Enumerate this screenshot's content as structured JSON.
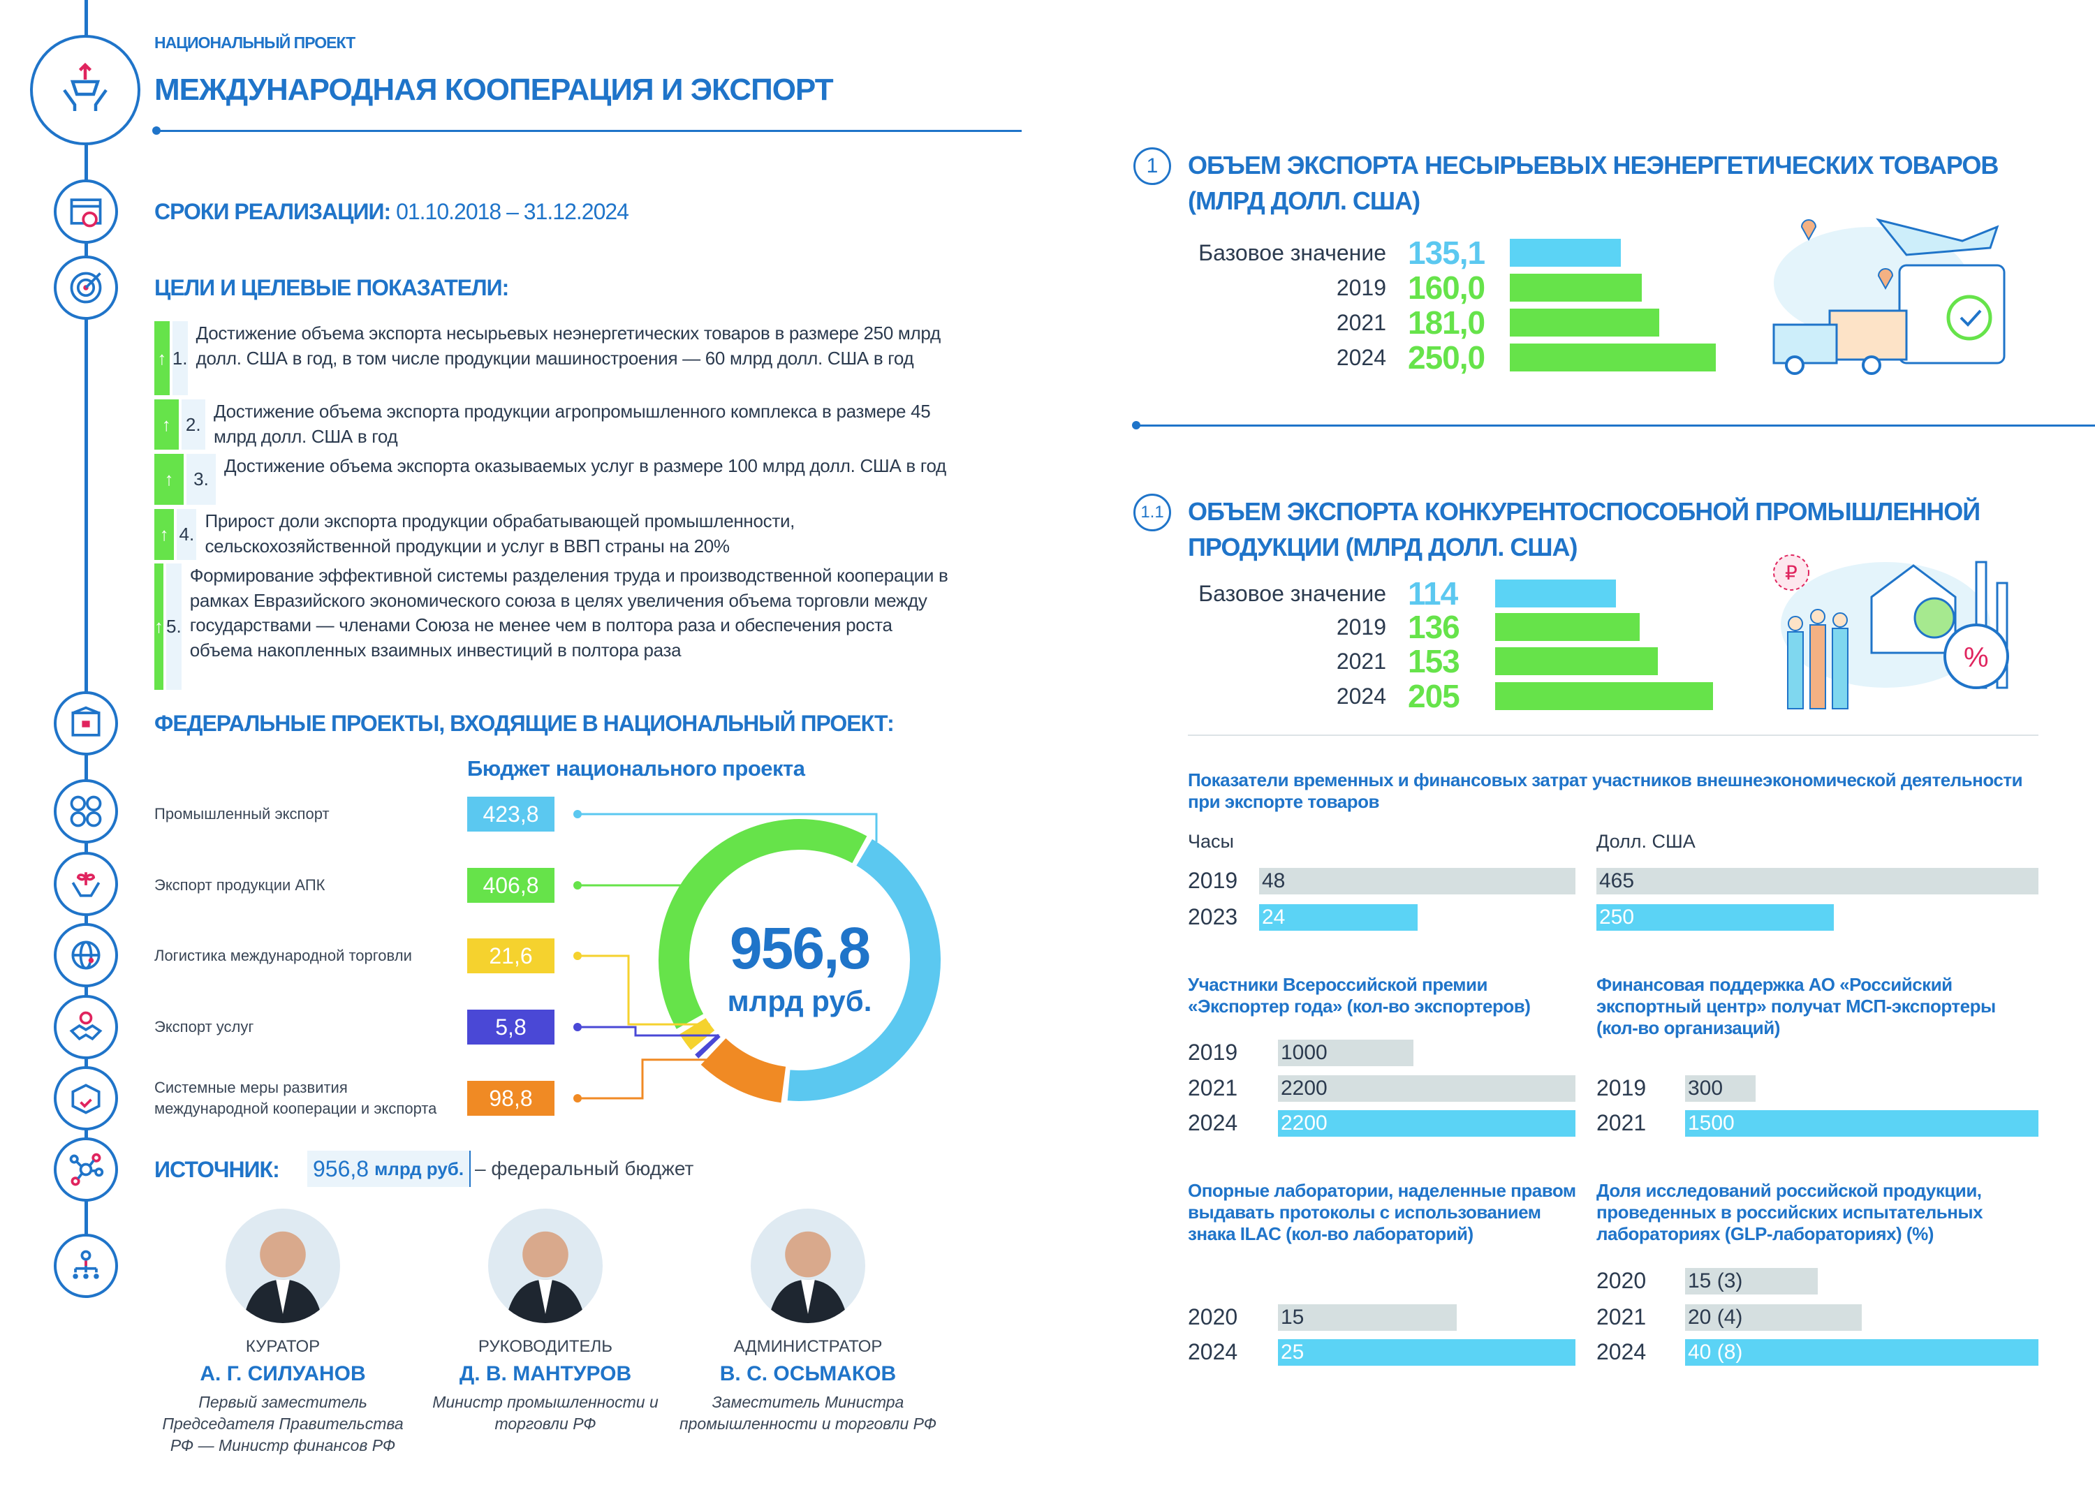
{
  "header": {
    "kicker": "НАЦИОНАЛЬНЫЙ ПРОЕКТ",
    "title": "МЕЖДУНАРОДНАЯ КООПЕРАЦИЯ И ЭКСПОРТ"
  },
  "timeline": {
    "label": "СРОКИ РЕАЛИЗАЦИИ:",
    "value": "01.10.2018 – 31.12.2024"
  },
  "goals": {
    "title": "ЦЕЛИ И ЦЕЛЕВЫЕ ПОКАЗАТЕЛИ:",
    "items": [
      {
        "num": "1.",
        "text": "Достижение объема экспорта несырьевых неэнергетических товаров в размере 250 млрд долл. США в год, в том числе продукции машиностроения — 60 млрд долл. США в год"
      },
      {
        "num": "2.",
        "text": "Достижение объема экспорта продукции агропромышленного комплекса в размере 45 млрд долл. США в год"
      },
      {
        "num": "3.",
        "text": "Достижение объема экспорта оказываемых услуг в размере 100 млрд долл. США в год"
      },
      {
        "num": "4.",
        "text": "Прирост доли экспорта продукции обрабатывающей промышленности, сельскохозяйственной продукции и услуг в ВВП страны на 20%"
      },
      {
        "num": "5.",
        "text": "Формирование эффективной системы разделения труда и производственной кооперации в рамках Евразийского экономического союза в целях увеличения объема торговли между государствами — членами Союза не менее чем в полтора раза и обеспечения роста объема накопленных взаимных инвестиций в полтора раза"
      }
    ]
  },
  "federal": {
    "title": "ФЕДЕРАЛЬНЫЕ ПРОЕКТЫ, ВХОДЯЩИЕ В НАЦИОНАЛЬНЫЙ ПРОЕКТ:",
    "budget_title": "Бюджет национального проекта",
    "total": "956,8",
    "total_unit": "млрд руб.",
    "projects": [
      {
        "label": "Промышленный экспорт",
        "value": 423.8,
        "display": "423,8",
        "color": "#5bc8f0"
      },
      {
        "label": "Экспорт продукции АПК",
        "value": 406.8,
        "display": "406,8",
        "color": "#66e34a"
      },
      {
        "label": "Логистика международной торговли",
        "value": 21.6,
        "display": "21,6",
        "color": "#f5d22e"
      },
      {
        "label": "Экспорт услуг",
        "value": 5.8,
        "display": "5,8",
        "color": "#4a48d6"
      },
      {
        "label": "Системные меры развития международной кооперации и экспорта",
        "value": 98.8,
        "display": "98,8",
        "color": "#f08a24"
      }
    ]
  },
  "source": {
    "label": "ИСТОЧНИК:",
    "amount": "956,8",
    "unit": "млрд руб.",
    "text": "– федеральный бюджет"
  },
  "people": [
    {
      "role": "КУРАТОР",
      "name": "А. Г. СИЛУАНОВ",
      "desc": "Первый заместитель Председателя Правительства РФ — Министр финансов РФ"
    },
    {
      "role": "РУКОВОДИТЕЛЬ",
      "name": "Д. В. МАНТУРОВ",
      "desc": "Министр промышленности и торговли РФ"
    },
    {
      "role": "АДМИНИСТРАТОР",
      "name": "В. С. ОСЬМАКОВ",
      "desc": "Заместитель Министра промышленности и торговли РФ"
    }
  ],
  "indicator1": {
    "badge": "1",
    "title": "ОБЪЕМ ЭКСПОРТА НЕСЫРЬЕВЫХ НЕЭНЕРГЕТИЧЕСКИХ ТОВАРОВ (МЛРД ДОЛЛ. США)",
    "rows": [
      {
        "label": "Базовое значение",
        "value": 135.1,
        "display": "135,1"
      },
      {
        "label": "2019",
        "value": 160.0,
        "display": "160,0"
      },
      {
        "label": "2021",
        "value": 181.0,
        "display": "181,0"
      },
      {
        "label": "2024",
        "value": 250.0,
        "display": "250,0"
      }
    ]
  },
  "indicator2": {
    "badge": "1.1",
    "title": "ОБЪЕМ ЭКСПОРТА КОНКУРЕНТОСПОСОБНОЙ ПРОМЫШЛЕННОЙ ПРОДУКЦИИ (МЛРД ДОЛЛ. США)",
    "rows": [
      {
        "label": "Базовое значение",
        "value": 114,
        "display": "114"
      },
      {
        "label": "2019",
        "value": 136,
        "display": "136"
      },
      {
        "label": "2021",
        "value": 153,
        "display": "153"
      },
      {
        "label": "2024",
        "value": 205,
        "display": "205"
      }
    ]
  },
  "costs": {
    "title": "Показатели временных и финансовых затрат участников внешнеэкономической деятельности при экспорте товаров",
    "hours": {
      "label": "Часы",
      "rows": [
        {
          "year": "2019",
          "value": 48,
          "display": "48"
        },
        {
          "year": "2023",
          "value": 24,
          "display": "24"
        }
      ]
    },
    "usd": {
      "label": "Долл. США",
      "rows": [
        {
          "year": "2019",
          "value": 465,
          "display": "465"
        },
        {
          "year": "2023",
          "value": 250,
          "display": "250"
        }
      ]
    }
  },
  "exporters": {
    "title": "Участники Всероссийской премии «Экспортер года» (кол-во экспортеров)",
    "rows": [
      {
        "year": "2019",
        "value": 1000,
        "display": "1000"
      },
      {
        "year": "2021",
        "value": 2200,
        "display": "2200"
      },
      {
        "year": "2024",
        "value": 2200,
        "display": "2200"
      }
    ]
  },
  "rec": {
    "title": "Финансовая поддержка АО «Российский экспортный центр» получат МСП-экспортеры (кол-во организаций)",
    "rows": [
      {
        "year": "2019",
        "value": 300,
        "display": "300"
      },
      {
        "year": "2021",
        "value": 1500,
        "display": "1500"
      }
    ]
  },
  "labs": {
    "title": "Опорные лаборатории, наделенные правом выдавать протоколы с использованием знака ILAC (кол-во лабораторий)",
    "rows": [
      {
        "year": "2020",
        "value": 15,
        "display": "15"
      },
      {
        "year": "2024",
        "value": 25,
        "display": "25"
      }
    ]
  },
  "glp": {
    "title": "Доля исследований российской продукции, проведенных в российских испытательных лабораториях (GLP-лабораториях) (%)",
    "rows": [
      {
        "year": "2020",
        "value": 15,
        "display": "15 (3)"
      },
      {
        "year": "2021",
        "value": 20,
        "display": "20 (4)"
      },
      {
        "year": "2024",
        "value": 40,
        "display": "40 (8)"
      }
    ]
  },
  "colors": {
    "accent": "#1f74c9",
    "target": "#66e34a",
    "base": "#5bc8f0",
    "bar_past": "#d5dfe0",
    "bar_target": "#5bd3f5"
  }
}
